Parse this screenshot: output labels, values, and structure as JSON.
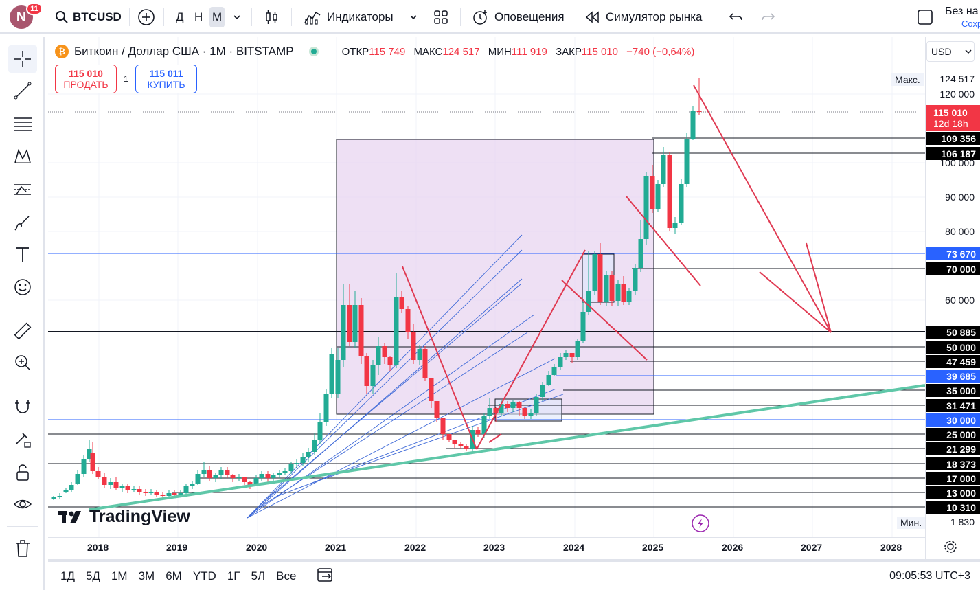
{
  "header": {
    "avatar_letter": "N",
    "notifications": "11",
    "symbol": "BTCUSD",
    "timeframes": [
      "Д",
      "Н",
      "М"
    ],
    "indicators_label": "Индикаторы",
    "alerts_label": "Оповещения",
    "replay_label": "Симулятор рынка",
    "save_label_top": "Без на",
    "save_label_bottom": "Сохр"
  },
  "legend": {
    "title": "Биткоин / Доллар США · 1М · BITSTAMP",
    "open_key": "ОТКР",
    "open_val": "115 749",
    "high_key": "МАКС",
    "high_val": "124 517",
    "low_key": "МИН",
    "low_val": "111 919",
    "close_key": "ЗАКР",
    "close_val": "115 010",
    "change": "−740 (−0,64%)"
  },
  "trade": {
    "sell_price": "115 010",
    "sell_label": "ПРОДАТЬ",
    "buy_price": "115 011",
    "buy_label": "КУПИТЬ",
    "spread": "1"
  },
  "currency": "USD",
  "price_axis": {
    "max_caption": "Макс.",
    "max_value": "124 517",
    "min_caption": "Мин.",
    "min_value": "1 830",
    "current_price": "115 010",
    "countdown": "12d 18h",
    "ticks": [
      {
        "text": "120 000",
        "y": 137
      },
      {
        "text": "100 000",
        "y": 237
      },
      {
        "text": "90 000",
        "y": 287
      },
      {
        "text": "80 000",
        "y": 337
      },
      {
        "text": "60 000",
        "y": 437
      }
    ],
    "labels": [
      {
        "text": "109 356",
        "y": 201,
        "style": "black"
      },
      {
        "text": "106 187",
        "y": 223,
        "style": "black"
      },
      {
        "text": "73 670",
        "y": 369,
        "style": "blue"
      },
      {
        "text": "70 000",
        "y": 391,
        "style": "black"
      },
      {
        "text": "50 885",
        "y": 483,
        "style": "black"
      },
      {
        "text": "50 000",
        "y": 505,
        "style": "black"
      },
      {
        "text": "47 459",
        "y": 526,
        "style": "black"
      },
      {
        "text": "39 685",
        "y": 547,
        "style": "blue"
      },
      {
        "text": "35 000",
        "y": 568,
        "style": "black"
      },
      {
        "text": "31 471",
        "y": 590,
        "style": "black"
      },
      {
        "text": "30 000",
        "y": 611,
        "style": "blue"
      },
      {
        "text": "25 000",
        "y": 632,
        "style": "black"
      },
      {
        "text": "21 299",
        "y": 653,
        "style": "black"
      },
      {
        "text": "18 373",
        "y": 675,
        "style": "black"
      },
      {
        "text": "17 000",
        "y": 696,
        "style": "black"
      },
      {
        "text": "13 000",
        "y": 717,
        "style": "black"
      },
      {
        "text": "10 310",
        "y": 738,
        "style": "black"
      }
    ]
  },
  "time_axis": {
    "years": [
      "2018",
      "2019",
      "2020",
      "2021",
      "2022",
      "2023",
      "2024",
      "2025",
      "2026",
      "2027",
      "2028"
    ]
  },
  "bottom": {
    "ranges": [
      "1Д",
      "5Д",
      "1М",
      "3М",
      "6М",
      "YTD",
      "1Г",
      "5Л",
      "Все"
    ],
    "clock": "09:05:53 UTC+3"
  },
  "watermark": "TradingView",
  "colors": {
    "up": "#22ab94",
    "down": "#f23645",
    "accent": "#2962ff",
    "trend": "#5fc7a8",
    "box": "#e8d6f0"
  }
}
